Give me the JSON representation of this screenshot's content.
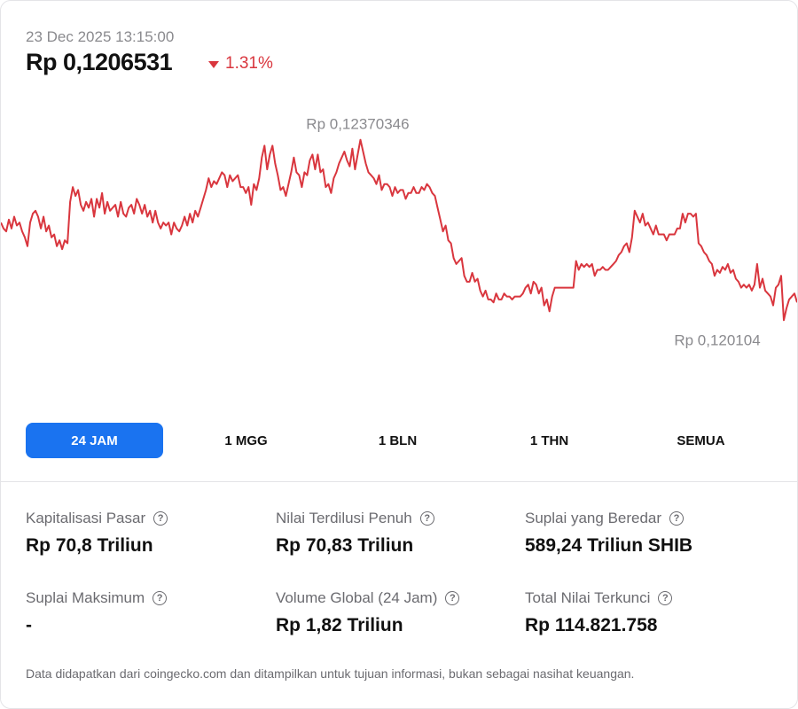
{
  "header": {
    "timestamp": "23 Dec 2025 13:15:00",
    "price": "Rp 0,1206531",
    "change": "1.31%",
    "change_direction": "down",
    "down_color": "#d9363e"
  },
  "chart_data": {
    "type": "line",
    "line_color": "#d9363e",
    "high_label": "Rp 0,12370346",
    "low_label": "Rp 0,120104",
    "high_value": 0.12370346,
    "low_value": 0.120104,
    "ylim": [
      0.11983,
      0.12395
    ],
    "x_range": "24 JAM",
    "values": [
      0.1223,
      0.1222,
      0.12215,
      0.12235,
      0.1222,
      0.1224,
      0.12225,
      0.1223,
      0.12215,
      0.12205,
      0.1219,
      0.1223,
      0.12245,
      0.1225,
      0.1224,
      0.1222,
      0.1224,
      0.12215,
      0.12225,
      0.12205,
      0.1221,
      0.1219,
      0.122,
      0.12185,
      0.122,
      0.12195,
      0.12265,
      0.1229,
      0.12275,
      0.12285,
      0.1226,
      0.1225,
      0.12265,
      0.12255,
      0.1227,
      0.1224,
      0.1227,
      0.12255,
      0.1228,
      0.12245,
      0.12265,
      0.1225,
      0.12255,
      0.1226,
      0.1224,
      0.12265,
      0.12245,
      0.1224,
      0.12255,
      0.1226,
      0.12245,
      0.1227,
      0.1226,
      0.12245,
      0.1226,
      0.1224,
      0.1225,
      0.1223,
      0.1225,
      0.1223,
      0.1222,
      0.1223,
      0.12225,
      0.1223,
      0.1221,
      0.1223,
      0.1222,
      0.12215,
      0.12225,
      0.1224,
      0.12225,
      0.12245,
      0.1223,
      0.1225,
      0.1224,
      0.12255,
      0.1227,
      0.12285,
      0.12305,
      0.1229,
      0.123,
      0.12295,
      0.12305,
      0.12315,
      0.1231,
      0.1229,
      0.1231,
      0.123,
      0.12305,
      0.1231,
      0.1229,
      0.1229,
      0.1228,
      0.1229,
      0.1226,
      0.12295,
      0.12285,
      0.12305,
      0.1234,
      0.1236,
      0.1232,
      0.12345,
      0.1236,
      0.1233,
      0.1231,
      0.12285,
      0.1229,
      0.12275,
      0.12295,
      0.12315,
      0.1234,
      0.12315,
      0.1231,
      0.1229,
      0.12315,
      0.1231,
      0.12335,
      0.12345,
      0.1232,
      0.12345,
      0.12315,
      0.1232,
      0.1229,
      0.12295,
      0.1228,
      0.12305,
      0.12315,
      0.1233,
      0.1234,
      0.1235,
      0.12335,
      0.12325,
      0.12355,
      0.1232,
      0.12345,
      0.1237,
      0.1235,
      0.1233,
      0.12315,
      0.1231,
      0.12305,
      0.12295,
      0.1231,
      0.12285,
      0.12295,
      0.12295,
      0.1229,
      0.12275,
      0.1229,
      0.1228,
      0.12285,
      0.12285,
      0.1227,
      0.1228,
      0.1228,
      0.1229,
      0.1228,
      0.1228,
      0.1229,
      0.12285,
      0.12295,
      0.1229,
      0.1228,
      0.12275,
      0.12255,
      0.12235,
      0.12215,
      0.12225,
      0.122,
      0.12195,
      0.1217,
      0.1216,
      0.12165,
      0.1217,
      0.1214,
      0.1213,
      0.1213,
      0.12145,
      0.1213,
      0.12135,
      0.12115,
      0.12105,
      0.12115,
      0.121,
      0.121,
      0.12095,
      0.1211,
      0.121,
      0.121,
      0.1211,
      0.12105,
      0.12105,
      0.121,
      0.12105,
      0.12105,
      0.12105,
      0.1211,
      0.1212,
      0.12125,
      0.1211,
      0.1213,
      0.12125,
      0.1211,
      0.1212,
      0.1209,
      0.121,
      0.1208,
      0.12105,
      0.1212,
      0.1212,
      0.1212,
      0.1212,
      0.1212,
      0.1212,
      0.1212,
      0.1212,
      0.12165,
      0.1215,
      0.1216,
      0.12155,
      0.1216,
      0.12155,
      0.1216,
      0.1214,
      0.1215,
      0.1215,
      0.12155,
      0.1215,
      0.1215,
      0.12155,
      0.1216,
      0.12165,
      0.12175,
      0.1218,
      0.1219,
      0.12195,
      0.1218,
      0.12205,
      0.1225,
      0.1224,
      0.1223,
      0.12245,
      0.12225,
      0.1223,
      0.1222,
      0.1221,
      0.12225,
      0.1221,
      0.1221,
      0.1221,
      0.122,
      0.1221,
      0.1221,
      0.1221,
      0.1222,
      0.1222,
      0.12245,
      0.1223,
      0.12245,
      0.12245,
      0.1224,
      0.12245,
      0.12195,
      0.1219,
      0.1218,
      0.12175,
      0.12165,
      0.1216,
      0.1214,
      0.1215,
      0.12145,
      0.12155,
      0.1215,
      0.1216,
      0.12145,
      0.1215,
      0.12135,
      0.1213,
      0.1212,
      0.12125,
      0.1212,
      0.12125,
      0.12115,
      0.12125,
      0.1216,
      0.1212,
      0.12135,
      0.12115,
      0.1211,
      0.12105,
      0.1209,
      0.1212,
      0.12125,
      0.1214,
      0.12065,
      0.12085,
      0.121,
      0.12105,
      0.1211,
      0.12095
    ]
  },
  "range_tabs": [
    {
      "label": "24 JAM",
      "active": true
    },
    {
      "label": "1 MGG",
      "active": false
    },
    {
      "label": "1 BLN",
      "active": false
    },
    {
      "label": "1 THN",
      "active": false
    },
    {
      "label": "SEMUA",
      "active": false
    }
  ],
  "accent_color": "#1a73f0",
  "stats": [
    {
      "label": "Kapitalisasi Pasar",
      "value": "Rp 70,8 Triliun"
    },
    {
      "label": "Nilai Terdilusi Penuh",
      "value": "Rp 70,83 Triliun"
    },
    {
      "label": "Suplai yang Beredar",
      "value": "589,24 Triliun SHIB"
    },
    {
      "label": "Suplai Maksimum",
      "value": "-"
    },
    {
      "label": "Volume Global (24 Jam)",
      "value": "Rp 1,82 Triliun"
    },
    {
      "label": "Total Nilai Terkunci",
      "value": "Rp 114.821.758"
    }
  ],
  "help_icon": "question-circle-icon",
  "help_glyph": "?",
  "disclaimer": "Data didapatkan dari coingecko.com dan ditampilkan untuk tujuan informasi, bukan sebagai nasihat keuangan."
}
